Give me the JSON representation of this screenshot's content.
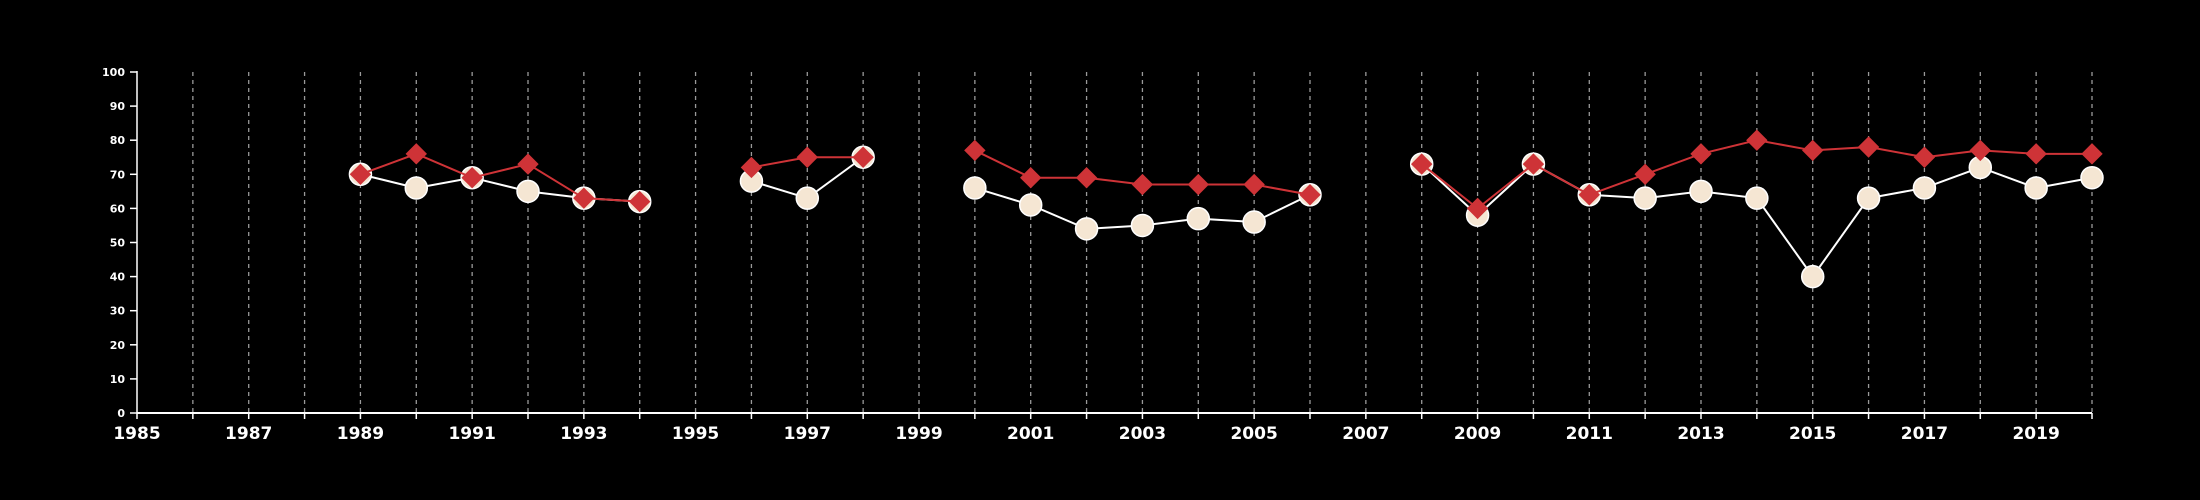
{
  "chart_data": {
    "type": "line",
    "title": "",
    "xlabel": "",
    "ylabel": "",
    "xlim": [
      1985,
      2020
    ],
    "ylim": [
      0,
      100
    ],
    "y_ticks": [
      0,
      10,
      20,
      30,
      40,
      50,
      60,
      70,
      80,
      90,
      100
    ],
    "x_tick_labels": [
      1985,
      1987,
      1989,
      1991,
      1993,
      1995,
      1997,
      1999,
      2001,
      2003,
      2005,
      2007,
      2009,
      2011,
      2013,
      2015,
      2017,
      2019
    ],
    "x_grid": "dashed vertical line at every year",
    "background": "#000000",
    "axis_color": "#ffffff",
    "series": [
      {
        "color": "#ce3337",
        "marker": "diamond",
        "points": [
          [
            1989,
            70
          ],
          [
            1990,
            76
          ],
          [
            1991,
            69
          ],
          [
            1992,
            73
          ],
          [
            1993,
            63
          ],
          [
            1994,
            62
          ],
          [
            1996,
            72
          ],
          [
            1997,
            75
          ],
          [
            1998,
            75
          ],
          [
            2000,
            77
          ],
          [
            2001,
            69
          ],
          [
            2002,
            69
          ],
          [
            2003,
            67
          ],
          [
            2004,
            67
          ],
          [
            2005,
            67
          ],
          [
            2006,
            64
          ],
          [
            2008,
            73
          ],
          [
            2009,
            60
          ],
          [
            2010,
            73
          ],
          [
            2011,
            64
          ],
          [
            2012,
            70
          ],
          [
            2013,
            76
          ],
          [
            2014,
            80
          ],
          [
            2015,
            77
          ],
          [
            2016,
            78
          ],
          [
            2017,
            75
          ],
          [
            2018,
            77
          ],
          [
            2019,
            76
          ],
          [
            2020,
            76
          ]
        ],
        "segments": [
          [
            1989,
            1994
          ],
          [
            1996,
            1998
          ],
          [
            2000,
            2006
          ],
          [
            2008,
            2020
          ]
        ]
      },
      {
        "color": "#f5e6d3",
        "line_color": "#ffffff",
        "marker": "circle",
        "points": [
          [
            1989,
            70
          ],
          [
            1990,
            66
          ],
          [
            1991,
            69
          ],
          [
            1992,
            65
          ],
          [
            1993,
            63
          ],
          [
            1994,
            62
          ],
          [
            1996,
            68
          ],
          [
            1997,
            63
          ],
          [
            1998,
            75
          ],
          [
            2000,
            66
          ],
          [
            2001,
            61
          ],
          [
            2002,
            54
          ],
          [
            2003,
            55
          ],
          [
            2004,
            57
          ],
          [
            2005,
            56
          ],
          [
            2006,
            64
          ],
          [
            2008,
            73
          ],
          [
            2009,
            58
          ],
          [
            2010,
            73
          ],
          [
            2011,
            64
          ],
          [
            2012,
            63
          ],
          [
            2013,
            65
          ],
          [
            2014,
            63
          ],
          [
            2015,
            40
          ],
          [
            2016,
            63
          ],
          [
            2017,
            66
          ],
          [
            2018,
            72
          ],
          [
            2019,
            66
          ],
          [
            2020,
            69
          ]
        ],
        "segments": [
          [
            1989,
            1994
          ],
          [
            1996,
            1998
          ],
          [
            2000,
            2006
          ],
          [
            2008,
            2020
          ]
        ]
      }
    ]
  }
}
